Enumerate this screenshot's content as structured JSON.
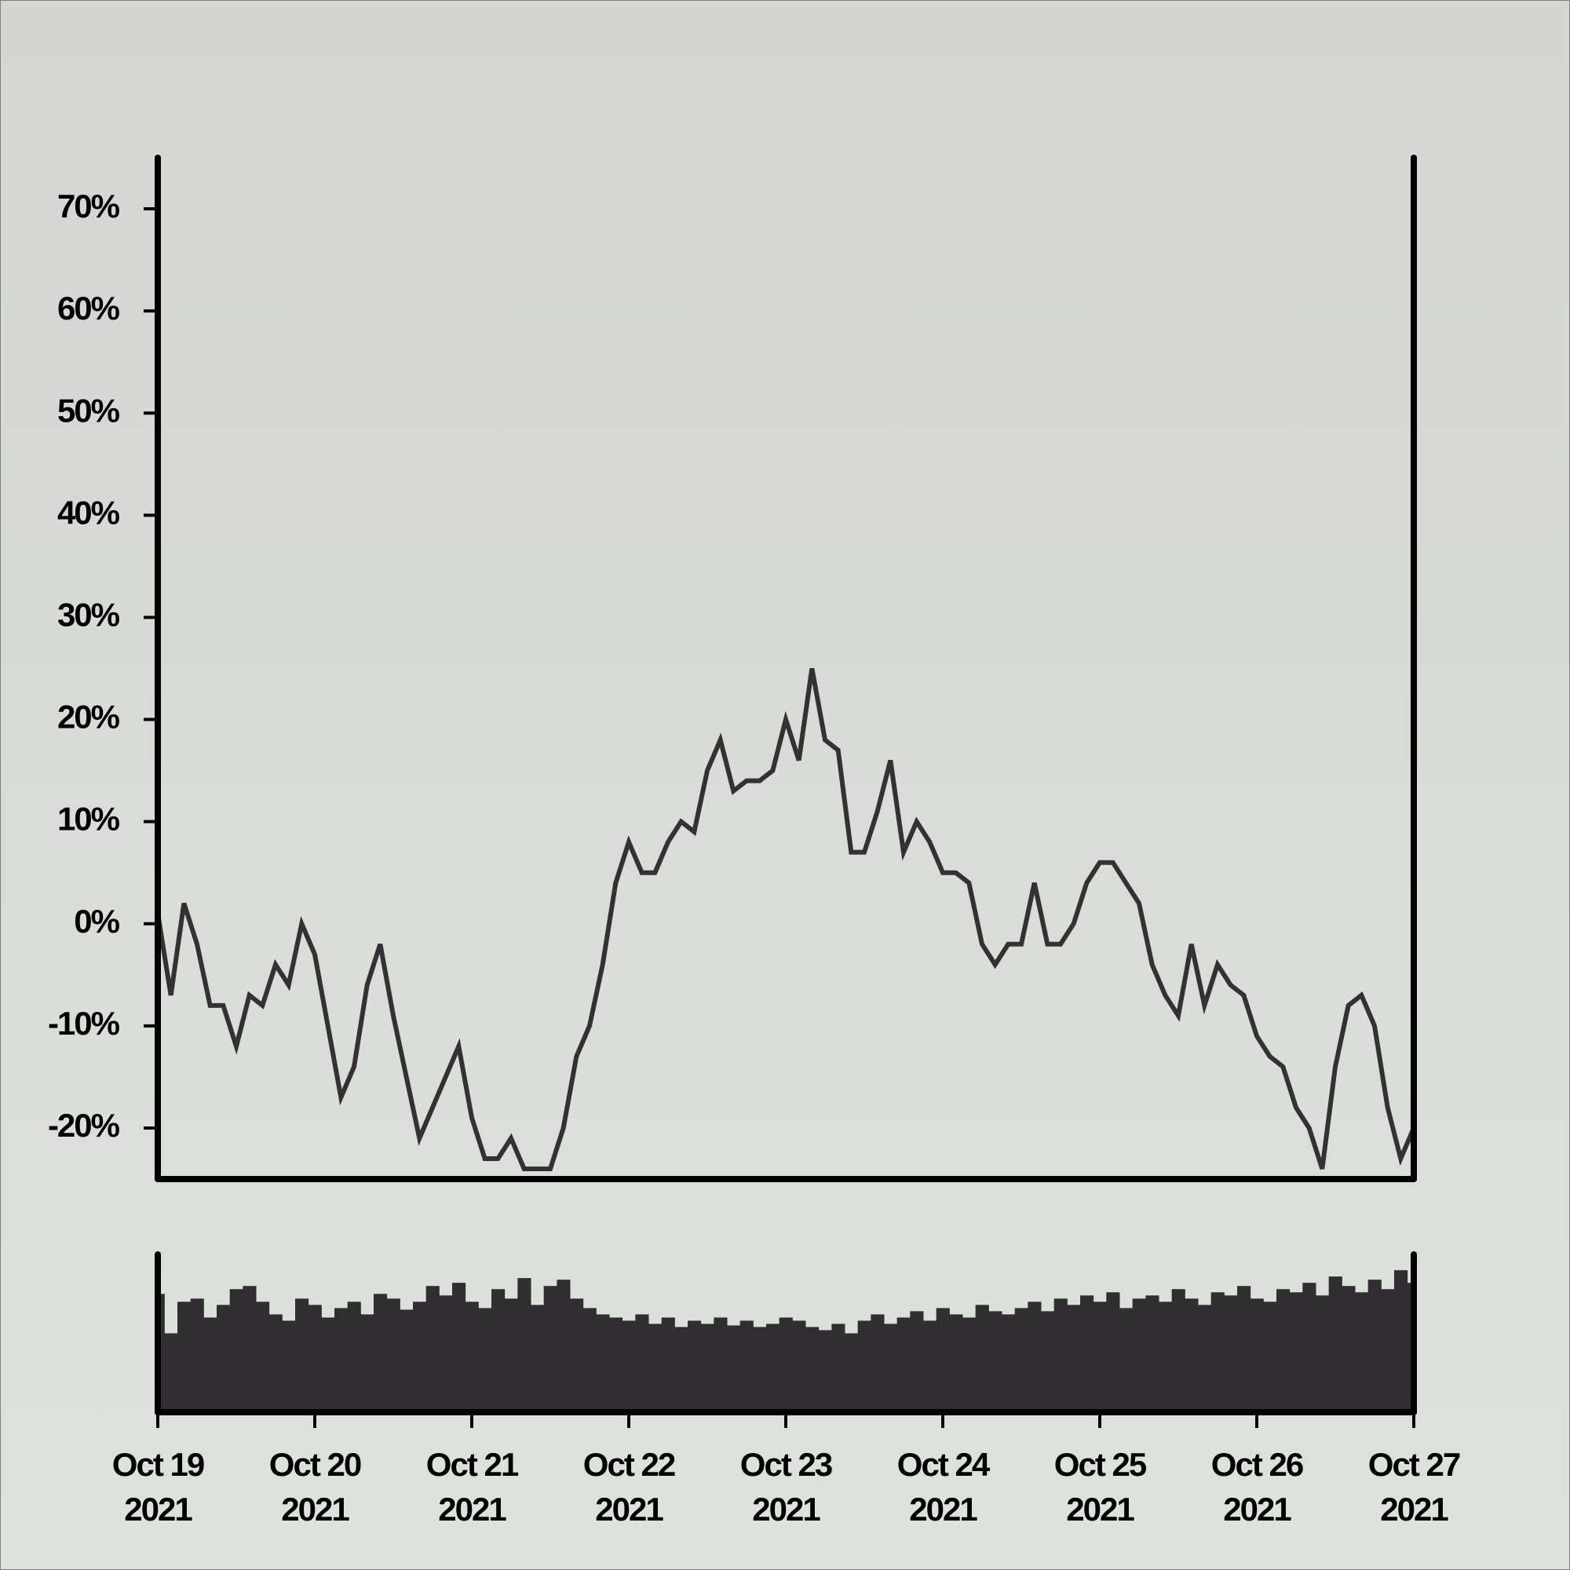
{
  "chart_data": [
    {
      "type": "line",
      "color": "#333133",
      "x": [
        0,
        2,
        4,
        6,
        8,
        10,
        12,
        14,
        16,
        18,
        20,
        22,
        24,
        26,
        28,
        30,
        32,
        34,
        36,
        38,
        40,
        42,
        44,
        46,
        48,
        50,
        52,
        54,
        56,
        58,
        60,
        62,
        64,
        66,
        68,
        70,
        72,
        74,
        76,
        78,
        80,
        82,
        84,
        86,
        88,
        90,
        92,
        94,
        96,
        98,
        100,
        102,
        104,
        106,
        108,
        110,
        112,
        114,
        116,
        118,
        120,
        122,
        124,
        126,
        128,
        130,
        132,
        134,
        136,
        138,
        140,
        142,
        144,
        146,
        148,
        150,
        152,
        154,
        156,
        158,
        160,
        162,
        164,
        166,
        168,
        170,
        172,
        174,
        176,
        178,
        180,
        182,
        184,
        186,
        188,
        190,
        192
      ],
      "values": [
        1,
        -7,
        2,
        -2,
        -8,
        -8,
        -12,
        -7,
        -8,
        -4,
        -6,
        0,
        -3,
        -10,
        -17,
        -14,
        -6,
        -2,
        -9,
        -15,
        -21,
        -18,
        -15,
        -12,
        -19,
        -23,
        -23,
        -21,
        -24,
        -24,
        -24,
        -20,
        -13,
        -10,
        -4,
        4,
        8,
        5,
        5,
        8,
        10,
        9,
        15,
        18,
        13,
        14,
        14,
        15,
        20,
        16,
        25,
        18,
        17,
        7,
        7,
        11,
        16,
        7,
        10,
        8,
        5,
        5,
        4,
        -2,
        -4,
        -2,
        -2,
        4,
        -2,
        -2,
        0,
        4,
        6,
        6,
        4,
        2,
        -4,
        -7,
        -9,
        -2,
        -8,
        -4,
        -6,
        -7,
        -11,
        -13,
        -14,
        -18,
        -20,
        -24,
        -14,
        -8,
        -7,
        -10,
        -18,
        -23,
        -20
      ],
      "xlim": [
        0,
        192
      ],
      "ylim": [
        -25,
        75
      ],
      "yticks": [
        {
          "value": -20,
          "label": "-20%"
        },
        {
          "value": -10,
          "label": "-10%"
        },
        {
          "value": 0,
          "label": "0%"
        },
        {
          "value": 10,
          "label": "10%"
        },
        {
          "value": 20,
          "label": "20%"
        },
        {
          "value": 30,
          "label": "30%"
        },
        {
          "value": 40,
          "label": "40%"
        },
        {
          "value": 50,
          "label": "50%"
        },
        {
          "value": 60,
          "label": "60%"
        },
        {
          "value": 70,
          "label": "70%"
        }
      ]
    },
    {
      "type": "bar",
      "color": "#302e30",
      "x": [
        0,
        2,
        4,
        6,
        8,
        10,
        12,
        14,
        16,
        18,
        20,
        22,
        24,
        26,
        28,
        30,
        32,
        34,
        36,
        38,
        40,
        42,
        44,
        46,
        48,
        50,
        52,
        54,
        56,
        58,
        60,
        62,
        64,
        66,
        68,
        70,
        72,
        74,
        76,
        78,
        80,
        82,
        84,
        86,
        88,
        90,
        92,
        94,
        96,
        98,
        100,
        102,
        104,
        106,
        108,
        110,
        112,
        114,
        116,
        118,
        120,
        122,
        124,
        126,
        128,
        130,
        132,
        134,
        136,
        138,
        140,
        142,
        144,
        146,
        148,
        150,
        152,
        154,
        156,
        158,
        160,
        162,
        164,
        166,
        168,
        170,
        172,
        174,
        176,
        178,
        180,
        182,
        184,
        186,
        188,
        190,
        192
      ],
      "values": [
        75,
        50,
        70,
        72,
        60,
        68,
        78,
        80,
        70,
        62,
        58,
        72,
        68,
        60,
        66,
        70,
        62,
        75,
        72,
        65,
        70,
        80,
        74,
        82,
        70,
        66,
        78,
        72,
        85,
        68,
        80,
        84,
        72,
        66,
        62,
        60,
        58,
        62,
        56,
        60,
        54,
        58,
        56,
        60,
        55,
        58,
        54,
        56,
        60,
        58,
        54,
        52,
        56,
        50,
        58,
        62,
        56,
        60,
        64,
        58,
        66,
        62,
        60,
        68,
        64,
        62,
        66,
        70,
        64,
        72,
        68,
        74,
        70,
        76,
        66,
        72,
        74,
        70,
        78,
        72,
        68,
        76,
        74,
        80,
        72,
        70,
        78,
        76,
        82,
        74,
        86,
        80,
        76,
        84,
        78,
        90,
        82
      ],
      "xlim": [
        0,
        192
      ],
      "ylim": [
        0,
        100
      ],
      "xticks": [
        {
          "value": 0,
          "label": "Oct 19\n2021"
        },
        {
          "value": 24,
          "label": "Oct 20\n2021"
        },
        {
          "value": 48,
          "label": "Oct 21\n2021"
        },
        {
          "value": 72,
          "label": "Oct 22\n2021"
        },
        {
          "value": 96,
          "label": "Oct 23\n2021"
        },
        {
          "value": 120,
          "label": "Oct 24\n2021"
        },
        {
          "value": 144,
          "label": "Oct 25\n2021"
        },
        {
          "value": 168,
          "label": "Oct 26\n2021"
        },
        {
          "value": 192,
          "label": "Oct 27\n2021"
        }
      ]
    }
  ]
}
